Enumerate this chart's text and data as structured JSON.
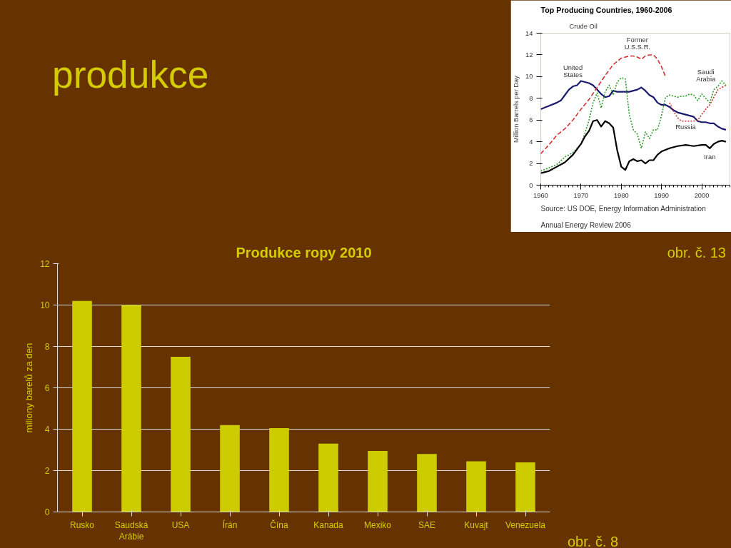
{
  "chart_data": [
    {
      "type": "bar",
      "title": "Produkce ropy 2010",
      "ylabel": "miliony barelů za den",
      "categories": [
        "Rusko",
        "Saudská Arábie",
        "USA",
        "Írán",
        "Čína",
        "Kanada",
        "Mexiko",
        "SAE",
        "Kuvajt",
        "Venezuela"
      ],
      "values": [
        10.2,
        10.0,
        7.5,
        4.2,
        4.05,
        3.3,
        2.95,
        2.8,
        2.45,
        2.4
      ],
      "color": "#cccc00",
      "ylim": [
        0,
        12
      ],
      "yticks": [
        0,
        2,
        4,
        6,
        8,
        10,
        12
      ],
      "grid": "y",
      "annotations": [
        "produkce",
        "obr. č. 8"
      ]
    },
    {
      "type": "line",
      "title": "Top Producing Countries, 1960-2006",
      "subtitle": "Crude Oil",
      "ylabel": "Million Barrels per Day",
      "xlim": [
        1960,
        2007
      ],
      "xticks": [
        1960,
        1970,
        1980,
        1990,
        2000
      ],
      "ylim": [
        0,
        14
      ],
      "yticks": [
        0,
        2,
        4,
        6,
        8,
        10,
        12,
        14
      ],
      "grid": false,
      "marker": "none",
      "series": [
        {
          "name": "United States",
          "color": "#1a1a6e",
          "line_style": "solid",
          "x": [
            1960,
            1962,
            1964,
            1965,
            1966,
            1967,
            1968,
            1969,
            1970,
            1971,
            1972,
            1973,
            1974,
            1975,
            1976,
            1977,
            1978,
            1979,
            1980,
            1981,
            1982,
            1983,
            1984,
            1985,
            1986,
            1987,
            1988,
            1989,
            1990,
            1991,
            1992,
            1993,
            1994,
            1995,
            1996,
            1997,
            1998,
            1999,
            2000,
            2001,
            2002,
            2003,
            2004,
            2005,
            2006
          ],
          "values": [
            7.0,
            7.3,
            7.6,
            7.8,
            8.3,
            8.8,
            9.1,
            9.2,
            9.6,
            9.5,
            9.4,
            9.2,
            8.8,
            8.4,
            8.1,
            8.2,
            8.7,
            8.6,
            8.6,
            8.6,
            8.6,
            8.7,
            8.8,
            9.0,
            8.7,
            8.3,
            8.1,
            7.6,
            7.4,
            7.4,
            7.2,
            6.9,
            6.7,
            6.6,
            6.5,
            6.4,
            6.3,
            5.9,
            5.8,
            5.8,
            5.7,
            5.7,
            5.4,
            5.2,
            5.1
          ]
        },
        {
          "name": "Former U.S.S.R.",
          "color": "#d43030",
          "line_style": "dashed",
          "x": [
            1960,
            1962,
            1964,
            1966,
            1968,
            1970,
            1972,
            1974,
            1976,
            1978,
            1980,
            1982,
            1983,
            1984,
            1985,
            1986,
            1987,
            1988,
            1989,
            1990,
            1991
          ],
          "values": [
            2.9,
            3.7,
            4.6,
            5.2,
            6.0,
            7.0,
            7.9,
            9.0,
            10.1,
            11.1,
            11.7,
            11.9,
            11.9,
            11.8,
            11.6,
            11.9,
            12.0,
            12.0,
            11.6,
            10.9,
            10.0
          ]
        },
        {
          "name": "Russia",
          "color": "#d43030",
          "line_style": "dotted",
          "x": [
            1992,
            1993,
            1994,
            1995,
            1996,
            1997,
            1998,
            1999,
            2000,
            2001,
            2002,
            2003,
            2004,
            2005,
            2006
          ],
          "values": [
            7.6,
            6.8,
            6.2,
            5.9,
            5.9,
            5.9,
            5.9,
            6.0,
            6.5,
            7.0,
            7.4,
            8.1,
            8.8,
            9.0,
            9.2
          ]
        },
        {
          "name": "Saudi Arabia",
          "color": "#2a9a2a",
          "line_style": "dotted",
          "x": [
            1960,
            1962,
            1964,
            1966,
            1968,
            1970,
            1971,
            1972,
            1973,
            1974,
            1975,
            1976,
            1977,
            1978,
            1979,
            1980,
            1981,
            1982,
            1983,
            1984,
            1985,
            1986,
            1987,
            1988,
            1989,
            1990,
            1991,
            1992,
            1993,
            1994,
            1995,
            1996,
            1997,
            1998,
            1999,
            2000,
            2001,
            2002,
            2003,
            2004,
            2005,
            2006
          ],
          "values": [
            1.3,
            1.6,
            1.9,
            2.6,
            3.0,
            3.8,
            4.8,
            6.0,
            7.6,
            8.5,
            7.1,
            8.6,
            9.2,
            8.3,
            9.5,
            9.9,
            9.8,
            6.5,
            5.1,
            4.7,
            3.4,
            4.9,
            4.3,
            5.1,
            5.1,
            6.4,
            8.1,
            8.3,
            8.2,
            8.1,
            8.2,
            8.2,
            8.4,
            8.3,
            7.8,
            8.4,
            8.0,
            7.6,
            8.8,
            9.1,
            9.6,
            9.2
          ]
        },
        {
          "name": "Iran",
          "color": "#000000",
          "line_style": "solid",
          "x": [
            1960,
            1962,
            1964,
            1966,
            1968,
            1970,
            1971,
            1972,
            1973,
            1974,
            1975,
            1976,
            1977,
            1978,
            1979,
            1980,
            1981,
            1982,
            1983,
            1984,
            1985,
            1986,
            1987,
            1988,
            1989,
            1990,
            1992,
            1994,
            1996,
            1998,
            2000,
            2001,
            2002,
            2003,
            2004,
            2005,
            2006
          ],
          "values": [
            1.1,
            1.3,
            1.7,
            2.1,
            2.8,
            3.8,
            4.5,
            5.0,
            5.9,
            6.0,
            5.4,
            5.9,
            5.7,
            5.3,
            3.2,
            1.7,
            1.4,
            2.2,
            2.4,
            2.2,
            2.3,
            2.0,
            2.3,
            2.3,
            2.8,
            3.1,
            3.4,
            3.6,
            3.7,
            3.6,
            3.7,
            3.7,
            3.4,
            3.8,
            4.0,
            4.1,
            4.0
          ]
        }
      ],
      "annotations": [
        "Source: US DOE, Energy Information Administration\nAnnual Energy Review 2006",
        "obr. č. 13"
      ]
    }
  ]
}
